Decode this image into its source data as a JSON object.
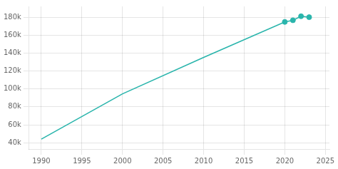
{
  "chart_data": {
    "type": "line",
    "x": [
      1990,
      2000,
      2010,
      2020,
      2021,
      2022,
      2023
    ],
    "series": [
      {
        "type": "line",
        "color": "#2ab5ac",
        "values": [
          44011,
          94536,
          135234,
          174721,
          176562,
          181050,
          180000
        ]
      },
      {
        "type": "scatter",
        "marker": "circle",
        "color": "#2ab5ac",
        "x": [
          2020,
          2021,
          2022,
          2023
        ],
        "values": [
          174721,
          176562,
          181050,
          180000
        ]
      }
    ],
    "xlim": [
      1988.5,
      2025.5
    ],
    "ylim": [
      33000,
      192000
    ],
    "xticks": [
      1990,
      1995,
      2000,
      2005,
      2010,
      2015,
      2020,
      2025
    ],
    "yticks": [
      {
        "value": 40000,
        "label": "40k"
      },
      {
        "value": 60000,
        "label": "60k"
      },
      {
        "value": 80000,
        "label": "80k"
      },
      {
        "value": 100000,
        "label": "100k"
      },
      {
        "value": 120000,
        "label": "120k"
      },
      {
        "value": 140000,
        "label": "140k"
      },
      {
        "value": 160000,
        "label": "160k"
      },
      {
        "value": 180000,
        "label": "180k"
      }
    ],
    "grid": true
  }
}
